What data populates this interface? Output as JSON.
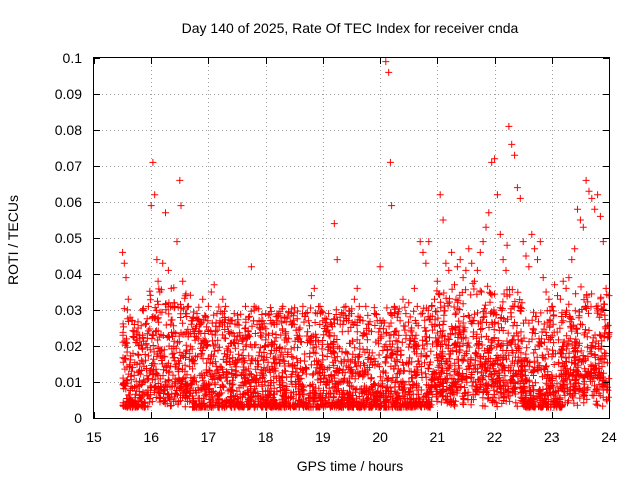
{
  "chart_data": {
    "type": "scatter",
    "title": "Day 140 of 2025, Rate Of TEC Index for receiver cnda",
    "xlabel": "GPS time / hours",
    "ylabel": "ROTI / TECUs",
    "xlim": [
      15,
      24
    ],
    "ylim": [
      0,
      0.1
    ],
    "x_ticks": [
      "15",
      "16",
      "17",
      "18",
      "19",
      "20",
      "21",
      "22",
      "23",
      "24"
    ],
    "y_ticks": [
      "0",
      "0.01",
      "0.02",
      "0.03",
      "0.04",
      "0.05",
      "0.06",
      "0.07",
      "0.08",
      "0.09",
      "0.1"
    ],
    "grid": true,
    "marker": "+",
    "color": "#ff0000",
    "series": [
      {
        "name": "ROTI",
        "x": [
          15.5,
          15.53,
          15.56,
          15.6,
          15.63,
          15.67,
          15.7,
          15.73,
          15.77,
          15.8,
          15.85,
          15.9,
          15.95,
          16.0,
          16.03,
          16.06,
          16.1,
          16.12,
          16.15,
          16.2,
          16.25,
          16.3,
          16.35,
          16.4,
          16.45,
          16.5,
          16.52,
          16.55,
          16.6,
          16.65,
          16.7,
          16.75,
          16.8,
          16.85,
          16.9,
          16.95,
          17.0,
          17.05,
          17.1,
          17.15,
          17.2,
          17.25,
          17.3,
          17.35,
          17.4,
          17.45,
          17.5,
          17.55,
          17.6,
          17.65,
          17.7,
          17.75,
          17.8,
          17.85,
          17.9,
          17.95,
          18.0,
          18.05,
          18.1,
          18.15,
          18.2,
          18.25,
          18.3,
          18.35,
          18.4,
          18.45,
          18.5,
          18.55,
          18.6,
          18.65,
          18.7,
          18.75,
          18.8,
          18.85,
          18.9,
          18.95,
          19.0,
          19.05,
          19.1,
          19.15,
          19.2,
          19.25,
          19.3,
          19.35,
          19.4,
          19.45,
          19.5,
          19.55,
          19.6,
          19.65,
          19.7,
          19.75,
          19.8,
          19.85,
          19.9,
          19.95,
          20.0,
          20.05,
          20.1,
          20.15,
          20.18,
          20.2,
          20.25,
          20.3,
          20.35,
          20.4,
          20.45,
          20.5,
          20.55,
          20.6,
          20.65,
          20.7,
          20.75,
          20.8,
          20.85,
          20.9,
          20.95,
          21.0,
          21.05,
          21.1,
          21.15,
          21.2,
          21.25,
          21.3,
          21.35,
          21.4,
          21.45,
          21.5,
          21.55,
          21.6,
          21.65,
          21.7,
          21.75,
          21.8,
          21.85,
          21.9,
          21.95,
          22.0,
          22.05,
          22.1,
          22.15,
          22.2,
          22.22,
          22.25,
          22.3,
          22.35,
          22.4,
          22.45,
          22.5,
          22.55,
          22.6,
          22.65,
          22.7,
          22.75,
          22.8,
          22.85,
          22.9,
          22.95,
          23.0,
          23.05,
          23.1,
          23.15,
          23.2,
          23.25,
          23.3,
          23.35,
          23.4,
          23.45,
          23.5,
          23.55,
          23.6,
          23.65,
          23.7,
          23.75,
          23.8,
          23.85,
          23.9,
          23.95,
          24.0
        ],
        "y": [
          0.046,
          0.043,
          0.039,
          0.033,
          0.028,
          0.027,
          0.024,
          0.021,
          0.025,
          0.022,
          0.023,
          0.026,
          0.031,
          0.059,
          0.071,
          0.062,
          0.044,
          0.038,
          0.035,
          0.043,
          0.057,
          0.041,
          0.036,
          0.032,
          0.049,
          0.066,
          0.059,
          0.038,
          0.029,
          0.031,
          0.027,
          0.024,
          0.029,
          0.026,
          0.033,
          0.028,
          0.031,
          0.035,
          0.037,
          0.029,
          0.027,
          0.033,
          0.031,
          0.024,
          0.027,
          0.029,
          0.026,
          0.023,
          0.022,
          0.025,
          0.028,
          0.042,
          0.031,
          0.026,
          0.025,
          0.027,
          0.029,
          0.023,
          0.021,
          0.026,
          0.027,
          0.029,
          0.031,
          0.024,
          0.022,
          0.029,
          0.026,
          0.023,
          0.025,
          0.031,
          0.029,
          0.027,
          0.034,
          0.036,
          0.029,
          0.031,
          0.027,
          0.024,
          0.029,
          0.026,
          0.054,
          0.044,
          0.028,
          0.026,
          0.031,
          0.027,
          0.029,
          0.033,
          0.036,
          0.028,
          0.027,
          0.031,
          0.026,
          0.024,
          0.029,
          0.027,
          0.042,
          0.027,
          0.099,
          0.096,
          0.071,
          0.059,
          0.031,
          0.028,
          0.027,
          0.033,
          0.029,
          0.032,
          0.025,
          0.036,
          0.031,
          0.049,
          0.046,
          0.043,
          0.049,
          0.031,
          0.033,
          0.038,
          0.062,
          0.055,
          0.043,
          0.041,
          0.046,
          0.037,
          0.042,
          0.044,
          0.039,
          0.041,
          0.047,
          0.043,
          0.038,
          0.041,
          0.046,
          0.049,
          0.053,
          0.057,
          0.071,
          0.072,
          0.062,
          0.051,
          0.044,
          0.041,
          0.048,
          0.081,
          0.076,
          0.073,
          0.064,
          0.061,
          0.049,
          0.045,
          0.042,
          0.051,
          0.047,
          0.044,
          0.049,
          0.039,
          0.035,
          0.033,
          0.031,
          0.037,
          0.034,
          0.033,
          0.038,
          0.036,
          0.039,
          0.044,
          0.047,
          0.058,
          0.055,
          0.053,
          0.066,
          0.063,
          0.061,
          0.058,
          0.062,
          0.056,
          0.049,
          0.036,
          0.034
        ]
      }
    ]
  }
}
